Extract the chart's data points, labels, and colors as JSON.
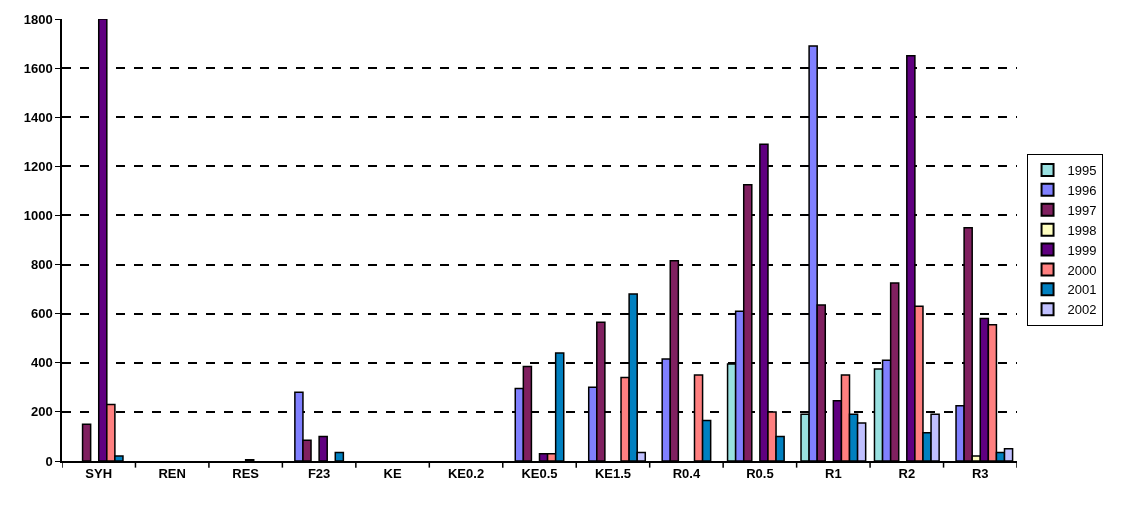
{
  "chart_data": {
    "type": "bar",
    "categories": [
      "SYH",
      "REN",
      "RES",
      "F23",
      "KE",
      "KE0.2",
      "KE0.5",
      "KE1.5",
      "R0.4",
      "R0.5",
      "R1",
      "R2",
      "R3"
    ],
    "series": [
      {
        "name": "1995",
        "color": "#99e0e0",
        "values": [
          null,
          null,
          null,
          null,
          null,
          null,
          null,
          null,
          null,
          395,
          190,
          375,
          null
        ]
      },
      {
        "name": "1996",
        "color": "#8080ff",
        "values": [
          null,
          null,
          null,
          280,
          null,
          null,
          295,
          300,
          415,
          610,
          1690,
          410,
          225
        ]
      },
      {
        "name": "1997",
        "color": "#802060",
        "values": [
          150,
          null,
          null,
          85,
          null,
          null,
          385,
          565,
          815,
          1125,
          635,
          725,
          950
        ]
      },
      {
        "name": "1998",
        "color": "#ffffc0",
        "values": [
          null,
          null,
          null,
          null,
          null,
          null,
          null,
          null,
          null,
          null,
          null,
          null,
          20
        ]
      },
      {
        "name": "1999",
        "color": "#600080",
        "values": [
          1800,
          null,
          5,
          100,
          null,
          null,
          30,
          null,
          null,
          1290,
          245,
          1650,
          580
        ]
      },
      {
        "name": "2000",
        "color": "#ff8080",
        "values": [
          230,
          null,
          null,
          null,
          null,
          null,
          30,
          340,
          350,
          200,
          350,
          630,
          555
        ]
      },
      {
        "name": "2001",
        "color": "#0080c0",
        "values": [
          20,
          null,
          null,
          35,
          null,
          null,
          440,
          680,
          165,
          100,
          190,
          115,
          35
        ]
      },
      {
        "name": "2002",
        "color": "#c0c0ff",
        "values": [
          null,
          null,
          null,
          null,
          null,
          null,
          null,
          35,
          null,
          null,
          155,
          190,
          50
        ]
      }
    ],
    "ylim": [
      0,
      1800
    ],
    "yticks": [
      0,
      200,
      400,
      600,
      800,
      1000,
      1200,
      1400,
      1600,
      1800
    ],
    "grid": "y",
    "legend": "right"
  }
}
